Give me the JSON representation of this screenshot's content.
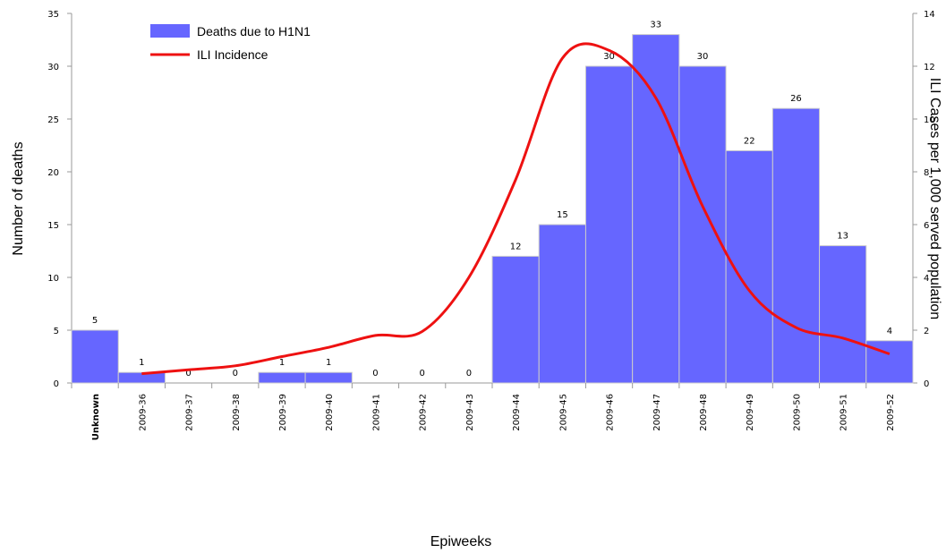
{
  "chart_data": {
    "type": "bar-line",
    "x_label": "Epiweeks",
    "y_label": "Number of deaths",
    "y2_label": "ILI Cases per 1,000 served population",
    "categories": [
      "Unknown",
      "2009-36",
      "2009-37",
      "2009-38",
      "2009-39",
      "2009-40",
      "2009-41",
      "2009-42",
      "2009-43",
      "2009-44",
      "2009-45",
      "2009-46",
      "2009-47",
      "2009-48",
      "2009-49",
      "2009-50",
      "2009-51",
      "2009-52"
    ],
    "series": [
      {
        "name": "Deaths due to H1N1",
        "color": "#6666ff",
        "kind": "bar",
        "values": [
          5,
          1,
          0,
          0,
          1,
          1,
          0,
          0,
          0,
          12,
          15,
          30,
          33,
          30,
          22,
          26,
          13,
          4
        ]
      },
      {
        "name": "ILI Incidence",
        "color": "#ee1111",
        "kind": "line",
        "axis": "y2",
        "values": [
          null,
          0.35,
          0.5,
          0.65,
          1.0,
          1.35,
          1.8,
          1.95,
          4.0,
          7.7,
          12.3,
          12.6,
          10.8,
          6.7,
          3.5,
          2.1,
          1.7,
          1.1
        ]
      }
    ],
    "ylim": [
      0,
      35
    ],
    "yticks": [
      0,
      5,
      10,
      15,
      20,
      25,
      30,
      35
    ],
    "y2lim": [
      0,
      14
    ],
    "y2ticks": [
      0,
      2,
      4,
      6,
      8,
      10,
      12,
      14
    ],
    "legend": "upper left"
  }
}
